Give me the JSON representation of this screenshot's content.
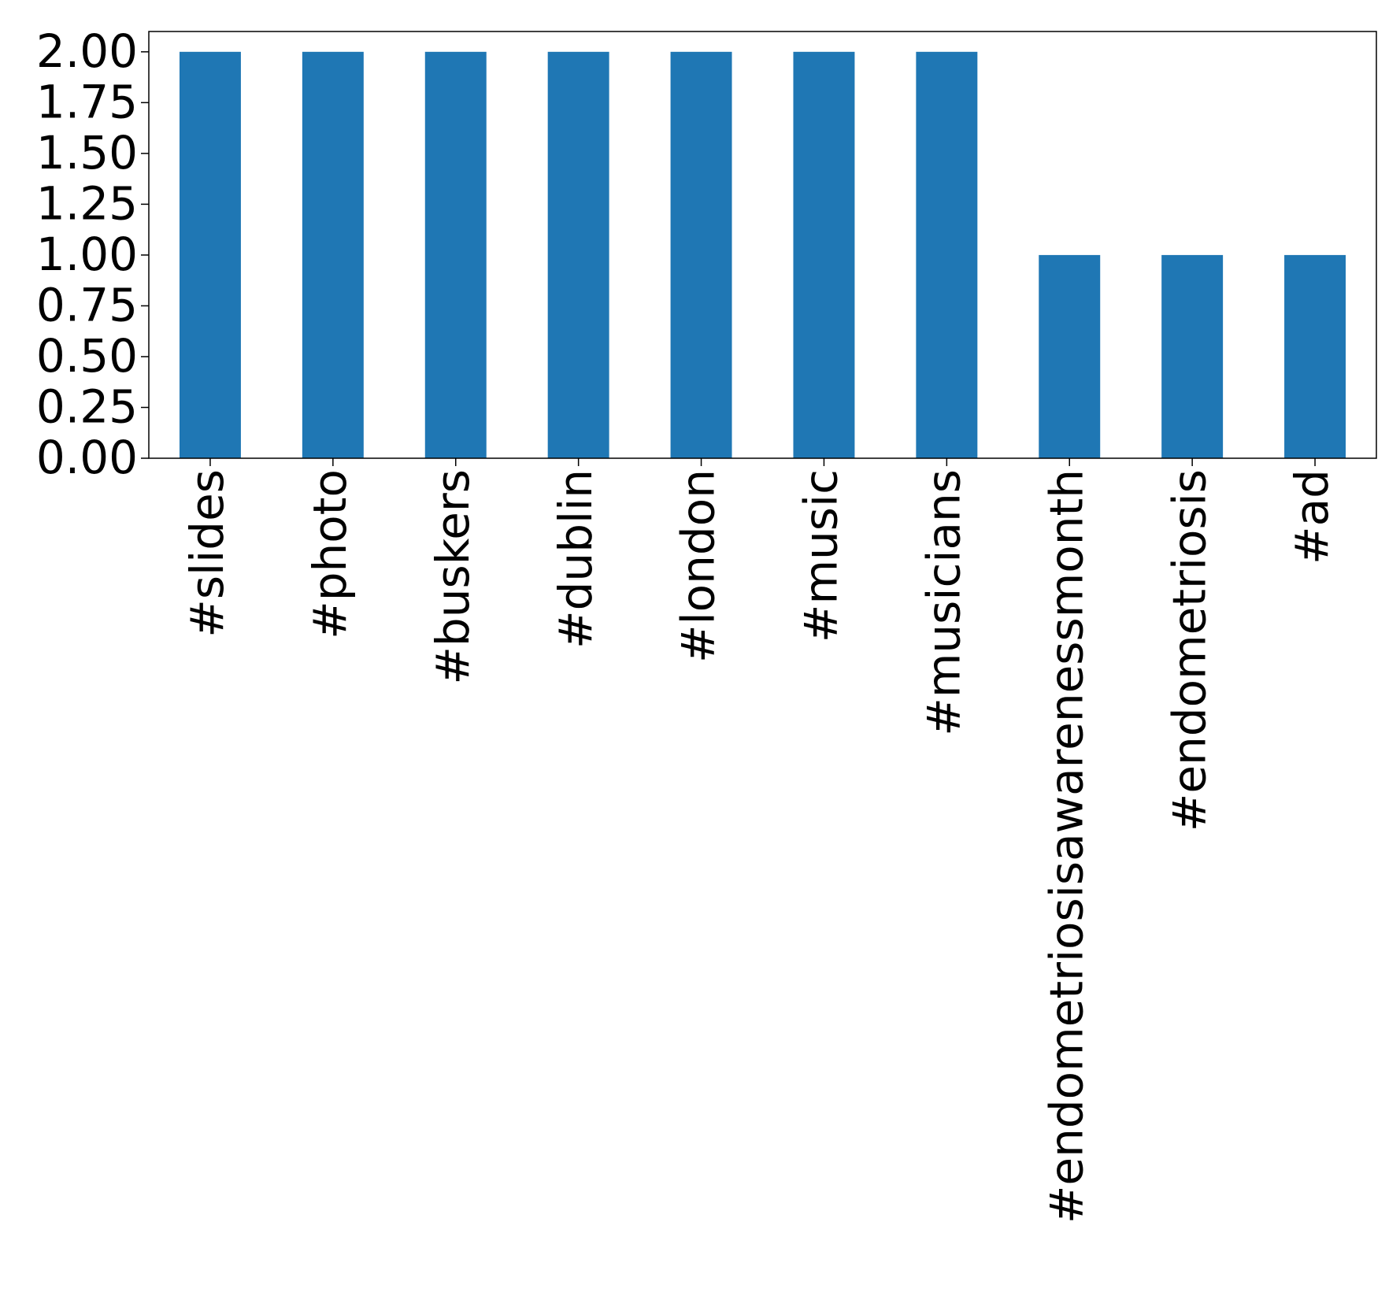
{
  "chart_data": {
    "type": "bar",
    "categories": [
      "#slides",
      "#photo",
      "#buskers",
      "#dublin",
      "#london",
      "#music",
      "#musicians",
      "#endometriosisawarenessmonth",
      "#endometriosis",
      "#ad"
    ],
    "values": [
      2,
      2,
      2,
      2,
      2,
      2,
      2,
      1,
      1,
      1
    ],
    "color": "#1f77b4",
    "ylim": [
      0,
      2.1
    ],
    "yticks": [
      {
        "value": 0,
        "label": "0.00"
      },
      {
        "value": 0.25,
        "label": "0.25"
      },
      {
        "value": 0.5,
        "label": "0.50"
      },
      {
        "value": 0.75,
        "label": "0.75"
      },
      {
        "value": 1,
        "label": "1.00"
      },
      {
        "value": 1.25,
        "label": "1.25"
      },
      {
        "value": 1.5,
        "label": "1.50"
      },
      {
        "value": 1.75,
        "label": "1.75"
      },
      {
        "value": 2,
        "label": "2.00"
      }
    ],
    "grid": false
  }
}
